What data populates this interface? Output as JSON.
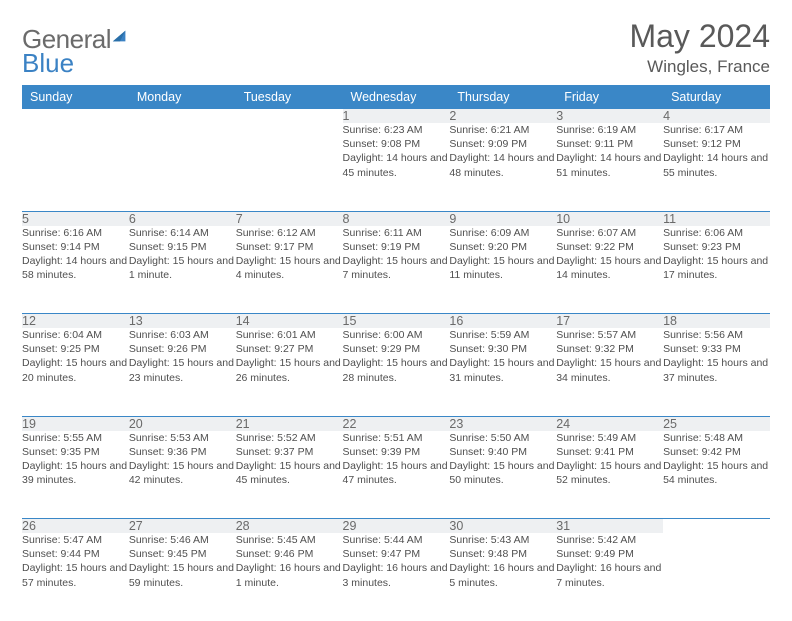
{
  "logo": {
    "left": "General",
    "right": "Blue"
  },
  "title": "May 2024",
  "location": "Wingles, France",
  "colors": {
    "header_bg": "#3a87c7",
    "daynum_bg": "#eef0f2",
    "rule": "#3a87c7",
    "text": "#4a4a4a"
  },
  "weekdays": [
    "Sunday",
    "Monday",
    "Tuesday",
    "Wednesday",
    "Thursday",
    "Friday",
    "Saturday"
  ],
  "weeks": [
    [
      null,
      null,
      null,
      {
        "n": "1",
        "sr": "6:23 AM",
        "ss": "9:08 PM",
        "dl": "14 hours and 45 minutes."
      },
      {
        "n": "2",
        "sr": "6:21 AM",
        "ss": "9:09 PM",
        "dl": "14 hours and 48 minutes."
      },
      {
        "n": "3",
        "sr": "6:19 AM",
        "ss": "9:11 PM",
        "dl": "14 hours and 51 minutes."
      },
      {
        "n": "4",
        "sr": "6:17 AM",
        "ss": "9:12 PM",
        "dl": "14 hours and 55 minutes."
      }
    ],
    [
      {
        "n": "5",
        "sr": "6:16 AM",
        "ss": "9:14 PM",
        "dl": "14 hours and 58 minutes."
      },
      {
        "n": "6",
        "sr": "6:14 AM",
        "ss": "9:15 PM",
        "dl": "15 hours and 1 minute."
      },
      {
        "n": "7",
        "sr": "6:12 AM",
        "ss": "9:17 PM",
        "dl": "15 hours and 4 minutes."
      },
      {
        "n": "8",
        "sr": "6:11 AM",
        "ss": "9:19 PM",
        "dl": "15 hours and 7 minutes."
      },
      {
        "n": "9",
        "sr": "6:09 AM",
        "ss": "9:20 PM",
        "dl": "15 hours and 11 minutes."
      },
      {
        "n": "10",
        "sr": "6:07 AM",
        "ss": "9:22 PM",
        "dl": "15 hours and 14 minutes."
      },
      {
        "n": "11",
        "sr": "6:06 AM",
        "ss": "9:23 PM",
        "dl": "15 hours and 17 minutes."
      }
    ],
    [
      {
        "n": "12",
        "sr": "6:04 AM",
        "ss": "9:25 PM",
        "dl": "15 hours and 20 minutes."
      },
      {
        "n": "13",
        "sr": "6:03 AM",
        "ss": "9:26 PM",
        "dl": "15 hours and 23 minutes."
      },
      {
        "n": "14",
        "sr": "6:01 AM",
        "ss": "9:27 PM",
        "dl": "15 hours and 26 minutes."
      },
      {
        "n": "15",
        "sr": "6:00 AM",
        "ss": "9:29 PM",
        "dl": "15 hours and 28 minutes."
      },
      {
        "n": "16",
        "sr": "5:59 AM",
        "ss": "9:30 PM",
        "dl": "15 hours and 31 minutes."
      },
      {
        "n": "17",
        "sr": "5:57 AM",
        "ss": "9:32 PM",
        "dl": "15 hours and 34 minutes."
      },
      {
        "n": "18",
        "sr": "5:56 AM",
        "ss": "9:33 PM",
        "dl": "15 hours and 37 minutes."
      }
    ],
    [
      {
        "n": "19",
        "sr": "5:55 AM",
        "ss": "9:35 PM",
        "dl": "15 hours and 39 minutes."
      },
      {
        "n": "20",
        "sr": "5:53 AM",
        "ss": "9:36 PM",
        "dl": "15 hours and 42 minutes."
      },
      {
        "n": "21",
        "sr": "5:52 AM",
        "ss": "9:37 PM",
        "dl": "15 hours and 45 minutes."
      },
      {
        "n": "22",
        "sr": "5:51 AM",
        "ss": "9:39 PM",
        "dl": "15 hours and 47 minutes."
      },
      {
        "n": "23",
        "sr": "5:50 AM",
        "ss": "9:40 PM",
        "dl": "15 hours and 50 minutes."
      },
      {
        "n": "24",
        "sr": "5:49 AM",
        "ss": "9:41 PM",
        "dl": "15 hours and 52 minutes."
      },
      {
        "n": "25",
        "sr": "5:48 AM",
        "ss": "9:42 PM",
        "dl": "15 hours and 54 minutes."
      }
    ],
    [
      {
        "n": "26",
        "sr": "5:47 AM",
        "ss": "9:44 PM",
        "dl": "15 hours and 57 minutes."
      },
      {
        "n": "27",
        "sr": "5:46 AM",
        "ss": "9:45 PM",
        "dl": "15 hours and 59 minutes."
      },
      {
        "n": "28",
        "sr": "5:45 AM",
        "ss": "9:46 PM",
        "dl": "16 hours and 1 minute."
      },
      {
        "n": "29",
        "sr": "5:44 AM",
        "ss": "9:47 PM",
        "dl": "16 hours and 3 minutes."
      },
      {
        "n": "30",
        "sr": "5:43 AM",
        "ss": "9:48 PM",
        "dl": "16 hours and 5 minutes."
      },
      {
        "n": "31",
        "sr": "5:42 AM",
        "ss": "9:49 PM",
        "dl": "16 hours and 7 minutes."
      },
      null
    ]
  ],
  "labels": {
    "sunrise": "Sunrise: ",
    "sunset": "Sunset: ",
    "daylight": "Daylight: "
  }
}
